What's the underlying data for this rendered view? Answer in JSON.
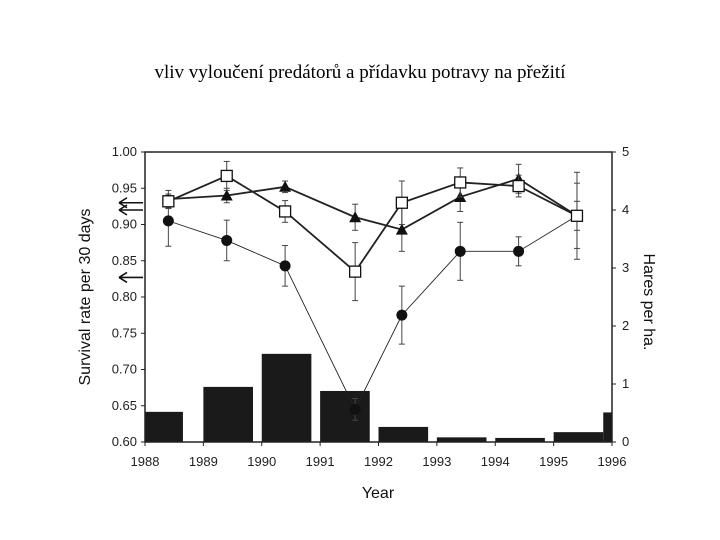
{
  "slide": {
    "title": "vliv vyloučení predátorů a přídavku potravy na přežití"
  },
  "chart_data": {
    "type": "line",
    "xlabel": "Year",
    "ylabel": "Survival rate per 30 days",
    "y2label": "Hares per ha.",
    "ylim": [
      0.6,
      1.0
    ],
    "y2lim": [
      0,
      5
    ],
    "xlim": [
      1988,
      1996
    ],
    "x_ticks": [
      "1988",
      "1989",
      "1990",
      "1991",
      "1992",
      "1993",
      "1994",
      "1995",
      "1996"
    ],
    "y_ticks": [
      "1.00",
      "0.95",
      "0.90",
      "0.85",
      "0.80",
      "0.75",
      "0.70",
      "0.65",
      "0.60"
    ],
    "y2_ticks": [
      "5",
      "4",
      "3",
      "2",
      "1",
      "0"
    ],
    "series": [
      {
        "marker": "filled-circle",
        "line": "thin",
        "x": [
          1988.4,
          1989.4,
          1990.4,
          1991.6,
          1992.4,
          1993.4,
          1994.4,
          1995.4
        ],
        "y": [
          0.905,
          0.878,
          0.843,
          0.645,
          0.775,
          0.863,
          0.863,
          0.912
        ],
        "err": [
          0.035,
          0.028,
          0.028,
          0.015,
          0.04,
          0.04,
          0.02,
          0.06
        ]
      },
      {
        "marker": "filled-triangle",
        "line": "thick",
        "x": [
          1988.4,
          1989.4,
          1990.4,
          1991.6,
          1992.4,
          1993.4,
          1994.4,
          1995.4
        ],
        "y": [
          0.935,
          0.94,
          0.952,
          0.91,
          0.893,
          0.938,
          0.963,
          0.912
        ],
        "err": [
          0.012,
          0.01,
          0.008,
          0.018,
          0.03,
          0.02,
          0.02,
          0.02
        ]
      },
      {
        "marker": "open-square",
        "line": "thick",
        "x": [
          1988.4,
          1989.4,
          1990.4,
          1991.6,
          1992.4,
          1993.4,
          1994.4,
          1995.4
        ],
        "y": [
          0.932,
          0.967,
          0.918,
          0.835,
          0.93,
          0.958,
          0.953,
          0.912
        ],
        "err": [
          0.01,
          0.02,
          0.015,
          0.04,
          0.03,
          0.02,
          0.015,
          0.045
        ]
      }
    ],
    "bars": {
      "axis": "right",
      "x_start": [
        1988,
        1989,
        1990,
        1991,
        1992,
        1993,
        1994,
        1995,
        1995.85
      ],
      "x_end": [
        1988.65,
        1989.85,
        1990.85,
        1991.85,
        1992.85,
        1993.85,
        1994.85,
        1995.85,
        1996.35
      ],
      "values": [
        0.52,
        0.95,
        1.52,
        0.88,
        0.26,
        0.08,
        0.07,
        0.17,
        0.51
      ]
    },
    "annotations": [
      {
        "type": "arrow",
        "y": 0.93
      },
      {
        "type": "arrow",
        "y": 0.92
      },
      {
        "type": "arrow",
        "y": 0.827
      }
    ],
    "grid": false
  }
}
